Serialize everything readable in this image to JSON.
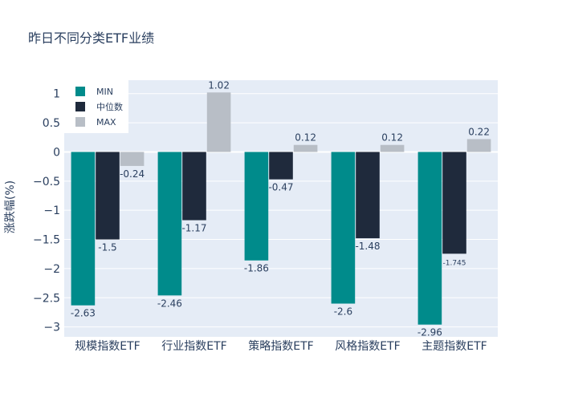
{
  "chart_data": {
    "type": "bar",
    "title": "昨日不同分类ETF业绩",
    "ylabel": "涨跌幅(%)",
    "xlabel": "",
    "categories": [
      "规模指数ETF",
      "行业指数ETF",
      "策略指数ETF",
      "风格指数ETF",
      "主题指数ETF"
    ],
    "series": [
      {
        "name": "MIN",
        "color": "#008b8b",
        "values": [
          -2.63,
          -2.46,
          -1.86,
          -2.6,
          -2.96
        ],
        "labels": [
          "-2.63",
          "-2.46",
          "-1.86",
          "-2.6",
          "-2.96"
        ]
      },
      {
        "name": "中位数",
        "color": "#1f2a3c",
        "values": [
          -1.5,
          -1.17,
          -0.47,
          -1.48,
          -1.745
        ],
        "labels": [
          "-1.5",
          "-1.17",
          "-0.47",
          "-1.48",
          "-1.745"
        ]
      },
      {
        "name": "MAX",
        "color": "#b8bec6",
        "values": [
          -0.24,
          1.02,
          0.12,
          0.12,
          0.22
        ],
        "labels": [
          "-0.24",
          "1.02",
          "0.12",
          "0.12",
          "0.22"
        ]
      }
    ],
    "ylim": [
      -3.17,
      1.23
    ],
    "yticks": [
      1,
      0.5,
      0,
      -0.5,
      -1,
      -1.5,
      -2,
      -2.5,
      -3
    ],
    "ytick_labels": [
      "1",
      "0.5",
      "0",
      "−0.5",
      "−1",
      "−1.5",
      "−2",
      "−2.5",
      "−3"
    ],
    "grid": true,
    "legend_position": "top-left",
    "plot_bg": "#e5ecf6"
  }
}
